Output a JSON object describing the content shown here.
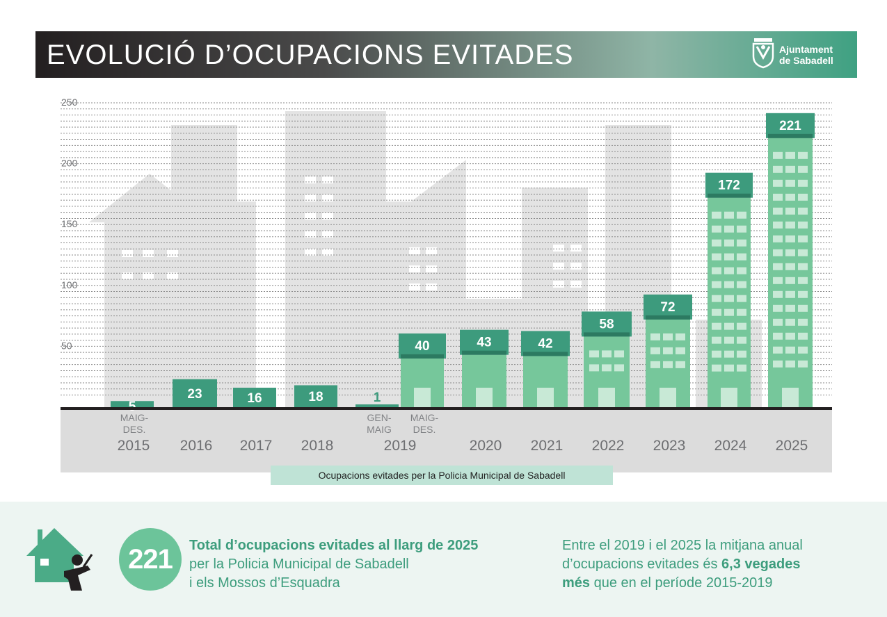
{
  "header": {
    "title": "EVOLUCIÓ D’OCUPACIONS EVITADES",
    "logo_line1": "Ajuntament",
    "logo_line2": "de Sabadell"
  },
  "chart_data": {
    "type": "bar",
    "title": "EVOLUCIÓ D’OCUPACIONS EVITADES",
    "caption": "Ocupacions evitades per la Policia Municipal de Sabadell",
    "ylim": [
      0,
      250
    ],
    "yticks": [
      50,
      100,
      150,
      200,
      250
    ],
    "bars": [
      {
        "year": "2015",
        "sub": "MAIG- DES.",
        "value": 5
      },
      {
        "year": "2016",
        "sub": "",
        "value": 23
      },
      {
        "year": "2017",
        "sub": "",
        "value": 16
      },
      {
        "year": "2018",
        "sub": "",
        "value": 18
      },
      {
        "year": "",
        "sub": "GEN- MAIG",
        "value": 1
      },
      {
        "year": "",
        "sub": "MAIG- DES.",
        "value": 40
      },
      {
        "year": "2020",
        "sub": "",
        "value": 43
      },
      {
        "year": "2021",
        "sub": "",
        "value": 42
      },
      {
        "year": "2022",
        "sub": "",
        "value": 58
      },
      {
        "year": "2023",
        "sub": "",
        "value": 72
      },
      {
        "year": "2024",
        "sub": "",
        "value": 172
      },
      {
        "year": "2025",
        "sub": "",
        "value": 221
      }
    ],
    "group_label_2019": "2019",
    "colors": {
      "dark": "#3d9b7d",
      "light": "#76c79b",
      "pale": "#c8e9d6",
      "axis": "#231f20"
    }
  },
  "summary": {
    "total": "221",
    "total_bold": "Total d’ocupacions evitades al llarg de 2025",
    "total_line2": "per la Policia Municipal de Sabadell",
    "total_line3": "i els Mossos d’Esquadra",
    "avg_line1": "Entre el 2019 i el 2025 la mitjana anual",
    "avg_line2a": "d’ocupacions evitades és ",
    "avg_line2b": "6,3 vegades",
    "avg_line3a": "més",
    "avg_line3b": " que en el període 2015-2019"
  }
}
